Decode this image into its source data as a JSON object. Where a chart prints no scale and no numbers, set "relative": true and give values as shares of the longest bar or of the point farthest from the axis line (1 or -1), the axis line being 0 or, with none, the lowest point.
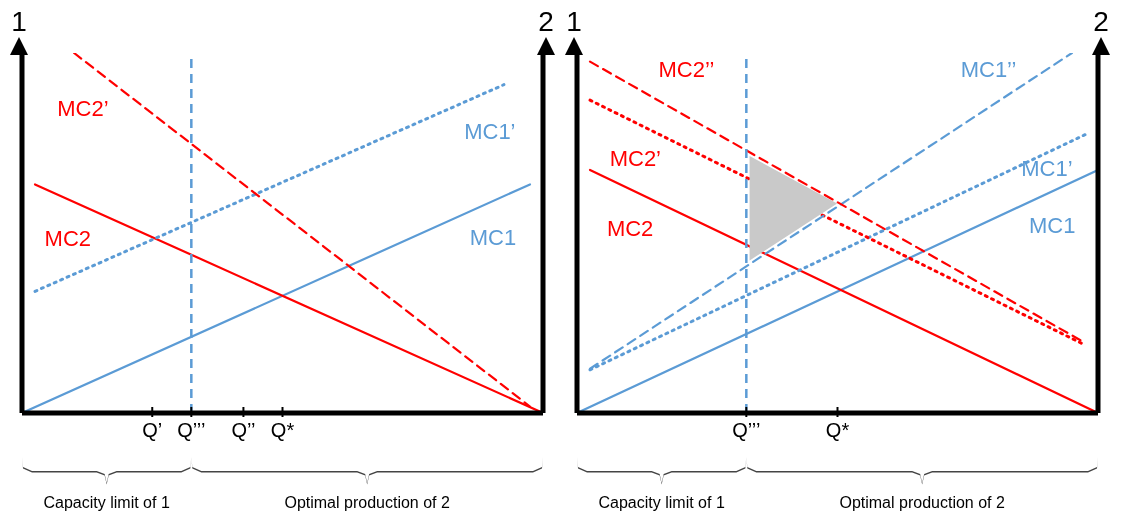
{
  "chart_data": [
    {
      "type": "line",
      "relative": true,
      "ylabel": "1",
      "y2label": "2",
      "categories": [
        null,
        null,
        null,
        null,
        null,
        null,
        null,
        null,
        null,
        null,
        "Q’",
        null,
        null,
        "Q’’’",
        null,
        null,
        null,
        "Q’’",
        null,
        null,
        "Q*",
        null,
        null,
        null,
        null,
        null,
        null,
        null,
        null,
        null,
        null,
        null,
        null,
        null,
        null,
        null,
        null,
        null,
        null,
        null,
        null
      ],
      "ref_lines": [
        {
          "axis": "x",
          "value": "Q’’’",
          "color": "#5b9bd5",
          "line_style": "dashed"
        }
      ],
      "annotations": [
        "Capacity limit of 1",
        "Optimal production of 2"
      ],
      "series": [
        {
          "name": "MC1",
          "color": "#5b9bd5",
          "line_style": "solid",
          "values": [
            0,
            null,
            null,
            null,
            null,
            null,
            null,
            null,
            null,
            null,
            null,
            null,
            null,
            null,
            null,
            null,
            null,
            null,
            null,
            null,
            null,
            null,
            null,
            null,
            null,
            null,
            null,
            null,
            null,
            null,
            null,
            null,
            null,
            null,
            null,
            null,
            null,
            null,
            null,
            0.635,
            null
          ]
        },
        {
          "name": "MC2",
          "color": "#ff0000",
          "line_style": "solid",
          "values": [
            null,
            0.635,
            null,
            null,
            null,
            null,
            null,
            null,
            null,
            null,
            null,
            null,
            null,
            null,
            null,
            null,
            null,
            null,
            null,
            null,
            null,
            null,
            null,
            null,
            null,
            null,
            null,
            null,
            null,
            null,
            null,
            null,
            null,
            null,
            null,
            null,
            null,
            null,
            null,
            null,
            0
          ]
        },
        {
          "name": "MC1’",
          "color": "#5b9bd5",
          "line_style": "dotted",
          "values": [
            null,
            0.338,
            null,
            null,
            null,
            null,
            null,
            null,
            null,
            null,
            null,
            null,
            null,
            null,
            null,
            null,
            null,
            null,
            null,
            null,
            null,
            null,
            null,
            null,
            null,
            null,
            null,
            null,
            null,
            null,
            null,
            null,
            null,
            null,
            null,
            null,
            null,
            0.912,
            null,
            null,
            null
          ]
        },
        {
          "name": "MC2’",
          "color": "#ff0000",
          "line_style": "dashed",
          "values": [
            null,
            null,
            null,
            null,
            1,
            null,
            null,
            null,
            null,
            null,
            null,
            null,
            null,
            null,
            null,
            null,
            null,
            null,
            null,
            null,
            null,
            null,
            null,
            null,
            null,
            null,
            null,
            null,
            null,
            null,
            null,
            null,
            null,
            null,
            null,
            null,
            null,
            null,
            null,
            0.018,
            null
          ]
        }
      ]
    },
    {
      "type": "line",
      "relative": true,
      "ylabel": "1",
      "y2label": "2",
      "categories": [
        null,
        null,
        null,
        null,
        null,
        null,
        null,
        null,
        null,
        null,
        null,
        null,
        null,
        "Q’’’",
        null,
        null,
        null,
        null,
        null,
        null,
        "Q*",
        null,
        null,
        null,
        null,
        null,
        null,
        null,
        null,
        null,
        null,
        null,
        null,
        null,
        null,
        null,
        null,
        null,
        null,
        null,
        null
      ],
      "ref_lines": [
        {
          "axis": "x",
          "value": "Q’’’",
          "color": "#5b9bd5",
          "line_style": "dashed"
        }
      ],
      "annotations": [
        "Capacity limit of 1",
        "Optimal production of 2"
      ],
      "series": [
        {
          "name": "MC1",
          "color": "#5b9bd5",
          "line_style": "solid",
          "values": [
            0,
            null,
            null,
            null,
            null,
            null,
            null,
            null,
            null,
            null,
            null,
            null,
            null,
            null,
            null,
            null,
            null,
            null,
            null,
            null,
            null,
            null,
            null,
            null,
            null,
            null,
            null,
            null,
            null,
            null,
            null,
            null,
            null,
            null,
            null,
            null,
            null,
            null,
            null,
            null,
            0.675
          ]
        },
        {
          "name": "MC2",
          "color": "#ff0000",
          "line_style": "solid",
          "values": [
            null,
            0.675,
            null,
            null,
            null,
            null,
            null,
            null,
            null,
            null,
            null,
            null,
            null,
            null,
            null,
            null,
            null,
            null,
            null,
            null,
            null,
            null,
            null,
            null,
            null,
            null,
            null,
            null,
            null,
            null,
            null,
            null,
            null,
            null,
            null,
            null,
            null,
            null,
            null,
            null,
            0
          ]
        },
        {
          "name": "MC1’",
          "color": "#5b9bd5",
          "line_style": "dotted",
          "values": [
            null,
            0.12,
            null,
            null,
            null,
            null,
            null,
            null,
            null,
            null,
            null,
            null,
            null,
            null,
            null,
            null,
            null,
            null,
            null,
            null,
            null,
            null,
            null,
            null,
            null,
            null,
            null,
            null,
            null,
            null,
            null,
            null,
            null,
            null,
            null,
            null,
            null,
            null,
            null,
            0.773,
            null
          ]
        },
        {
          "name": "MC2’",
          "color": "#ff0000",
          "line_style": "dotted",
          "values": [
            null,
            0.869,
            null,
            null,
            null,
            null,
            null,
            null,
            null,
            null,
            null,
            null,
            null,
            null,
            null,
            null,
            null,
            null,
            null,
            null,
            null,
            null,
            null,
            null,
            null,
            null,
            null,
            null,
            null,
            null,
            null,
            null,
            null,
            null,
            null,
            null,
            null,
            null,
            null,
            0.189,
            null
          ]
        },
        {
          "name": "MC1’’",
          "color": "#5b9bd5",
          "line_style": "dashed",
          "values": [
            null,
            0.123,
            null,
            null,
            null,
            null,
            null,
            null,
            null,
            null,
            null,
            null,
            null,
            null,
            null,
            null,
            null,
            null,
            null,
            null,
            null,
            null,
            null,
            null,
            null,
            null,
            null,
            null,
            null,
            null,
            null,
            null,
            null,
            null,
            null,
            null,
            null,
            null,
            1,
            null,
            null
          ]
        },
        {
          "name": "MC2’’",
          "color": "#ff0000",
          "line_style": "dashed",
          "values": [
            null,
            0.976,
            null,
            null,
            null,
            null,
            null,
            null,
            null,
            null,
            null,
            null,
            null,
            null,
            null,
            null,
            null,
            null,
            null,
            null,
            null,
            null,
            null,
            null,
            null,
            null,
            null,
            null,
            null,
            null,
            null,
            null,
            null,
            null,
            null,
            null,
            null,
            null,
            null,
            0.195,
            null
          ]
        }
      ]
    }
  ]
}
